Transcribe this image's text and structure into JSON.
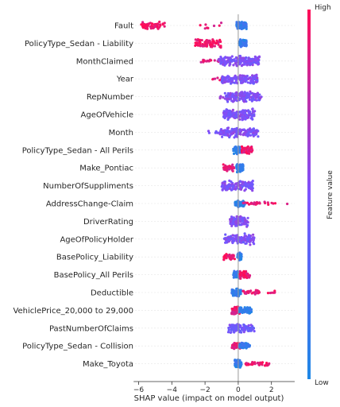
{
  "chart_data": {
    "type": "scatter",
    "subtype": "shap-beeswarm",
    "xlabel": "SHAP value (impact on model output)",
    "xlim": [
      -6.3,
      3.4
    ],
    "xticks": [
      -6,
      -4,
      -2,
      0,
      2
    ],
    "zero_line": true,
    "colorbar": {
      "label": "Feature value",
      "high_label": "High",
      "low_label": "Low",
      "low_color": "#1E88E5",
      "high_color": "#FF0D57"
    },
    "features": [
      {
        "name": "Fault",
        "clusters": [
          {
            "x": [
              -5.9,
              -4.4
            ],
            "h": 0.95,
            "n": 60
          },
          {
            "x": [
              -2.4,
              -0.6
            ],
            "h": 0.9,
            "n": 8
          },
          {
            "x": [
              -0.1,
              0.5
            ],
            "h": 0.15,
            "n": 140,
            "w": 0.55
          }
        ]
      },
      {
        "name": "PolicyType_Sedan - Liability",
        "clusters": [
          {
            "x": [
              -2.6,
              -1.0
            ],
            "h": 0.95,
            "n": 70,
            "w": 0.7
          },
          {
            "x": [
              0.05,
              0.5
            ],
            "h": 0.12,
            "n": 90,
            "w": 0.55
          }
        ]
      },
      {
        "name": "MonthClaimed",
        "clusters": [
          {
            "x": [
              -2.3,
              -0.9
            ],
            "h": 0.9,
            "n": 22,
            "w": 0.25
          },
          {
            "x": [
              -1.2,
              1.3
            ],
            "h": 0.5,
            "n": 180,
            "w": 0.75
          }
        ]
      },
      {
        "name": "Year",
        "clusters": [
          {
            "x": [
              -1.6,
              -0.8
            ],
            "h": 0.9,
            "n": 10,
            "w": 0.3
          },
          {
            "x": [
              -1.0,
              1.2
            ],
            "h": 0.5,
            "n": 150,
            "w": 0.75
          }
        ]
      },
      {
        "name": "RepNumber",
        "clusters": [
          {
            "x": [
              -1.2,
              -0.5
            ],
            "h": 0.7,
            "n": 6,
            "w": 0.3
          },
          {
            "x": [
              -0.8,
              1.4
            ],
            "h": 0.5,
            "n": 150,
            "w": 0.8
          }
        ]
      },
      {
        "name": "AgeOfVehicle",
        "clusters": [
          {
            "x": [
              -0.9,
              1.0
            ],
            "h": 0.5,
            "n": 150,
            "w": 0.85
          }
        ]
      },
      {
        "name": "Month",
        "clusters": [
          {
            "x": [
              -1.8,
              -1.0
            ],
            "h": 0.5,
            "n": 8,
            "w": 0.3
          },
          {
            "x": [
              -1.1,
              1.2
            ],
            "h": 0.5,
            "n": 150,
            "w": 0.8
          }
        ]
      },
      {
        "name": "PolicyType_Sedan - All Perils",
        "clusters": [
          {
            "x": [
              -0.3,
              0.15
            ],
            "h": 0.1,
            "n": 60,
            "w": 0.65
          },
          {
            "x": [
              0.2,
              0.9
            ],
            "h": 0.92,
            "n": 60,
            "w": 0.6
          }
        ]
      },
      {
        "name": "Make_Pontiac",
        "clusters": [
          {
            "x": [
              -0.9,
              -0.25
            ],
            "h": 0.92,
            "n": 45,
            "w": 0.55
          },
          {
            "x": [
              -0.1,
              0.3
            ],
            "h": 0.1,
            "n": 70,
            "w": 0.65
          }
        ]
      },
      {
        "name": "NumberOfSuppliments",
        "clusters": [
          {
            "x": [
              -1.0,
              0.9
            ],
            "h": 0.5,
            "n": 140,
            "w": 0.75
          }
        ]
      },
      {
        "name": "AddressChange-Claim",
        "clusters": [
          {
            "x": [
              -0.2,
              0.4
            ],
            "h": 0.1,
            "n": 60,
            "w": 0.5
          },
          {
            "x": [
              0.3,
              2.4
            ],
            "h": 0.92,
            "n": 30,
            "w": 0.25
          },
          {
            "x": [
              2.9,
              3.0
            ],
            "h": 0.95,
            "n": 1,
            "w": 0.1
          }
        ]
      },
      {
        "name": "DriverRating",
        "clusters": [
          {
            "x": [
              -0.5,
              0.6
            ],
            "h": 0.5,
            "n": 120,
            "w": 0.8
          }
        ]
      },
      {
        "name": "AgeOfPolicyHolder",
        "clusters": [
          {
            "x": [
              -0.9,
              1.0
            ],
            "h": 0.5,
            "n": 140,
            "w": 0.8
          }
        ]
      },
      {
        "name": "BasePolicy_Liability",
        "clusters": [
          {
            "x": [
              -0.9,
              -0.2
            ],
            "h": 0.95,
            "n": 35,
            "w": 0.45
          },
          {
            "x": [
              -0.05,
              0.2
            ],
            "h": 0.1,
            "n": 40,
            "w": 0.6
          }
        ]
      },
      {
        "name": "BasePolicy_All Perils",
        "clusters": [
          {
            "x": [
              -0.3,
              0.1
            ],
            "h": 0.1,
            "n": 55,
            "w": 0.6
          },
          {
            "x": [
              0.1,
              0.7
            ],
            "h": 0.92,
            "n": 50,
            "w": 0.55
          }
        ]
      },
      {
        "name": "Deductible",
        "clusters": [
          {
            "x": [
              -0.4,
              0.2
            ],
            "h": 0.1,
            "n": 60,
            "w": 0.6
          },
          {
            "x": [
              0.2,
              1.3
            ],
            "h": 0.9,
            "n": 30,
            "w": 0.35
          },
          {
            "x": [
              1.7,
              2.2
            ],
            "h": 0.95,
            "n": 8,
            "w": 0.3
          }
        ]
      },
      {
        "name": "VehiclePrice_20,000 to 29,000",
        "clusters": [
          {
            "x": [
              -0.4,
              0.1
            ],
            "h": 0.92,
            "n": 60,
            "w": 0.6
          },
          {
            "x": [
              0.05,
              0.8
            ],
            "h": 0.1,
            "n": 60,
            "w": 0.5
          }
        ]
      },
      {
        "name": "PastNumberOfClaims",
        "clusters": [
          {
            "x": [
              -0.6,
              1.0
            ],
            "h": 0.45,
            "n": 110,
            "w": 0.7
          }
        ]
      },
      {
        "name": "PolicyType_Sedan - Collision",
        "clusters": [
          {
            "x": [
              -0.4,
              0.15
            ],
            "h": 0.92,
            "n": 55,
            "w": 0.6
          },
          {
            "x": [
              0.05,
              0.7
            ],
            "h": 0.1,
            "n": 60,
            "w": 0.5
          }
        ]
      },
      {
        "name": "Make_Toyota",
        "clusters": [
          {
            "x": [
              -0.2,
              0.2
            ],
            "h": 0.1,
            "n": 60,
            "w": 0.6
          },
          {
            "x": [
              0.2,
              1.9
            ],
            "h": 0.92,
            "n": 40,
            "w": 0.3
          }
        ]
      }
    ]
  }
}
